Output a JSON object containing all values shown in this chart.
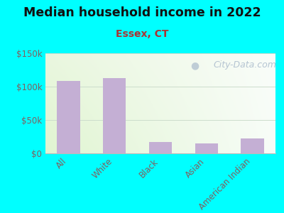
{
  "title": "Median household income in 2022",
  "subtitle": "Essex, CT",
  "categories": [
    "All",
    "White",
    "Black",
    "Asian",
    "American Indian"
  ],
  "values": [
    108000,
    113000,
    17000,
    15000,
    22000
  ],
  "bar_color": "#c4afd4",
  "background_outer": "#00ffff",
  "background_inner_left": "#d8edcc",
  "background_inner_right": "#f0f8f0",
  "background_inner_top": "#f0f8f0",
  "background_inner_bottom": "#e8f4dc",
  "title_fontsize": 12.5,
  "title_fontweight": "bold",
  "subtitle_fontsize": 10,
  "subtitle_color": "#aa3333",
  "title_color": "#111111",
  "tick_label_color": "#806060",
  "ylim": [
    0,
    150000
  ],
  "yticks": [
    0,
    50000,
    100000,
    150000
  ],
  "ytick_labels": [
    "$0",
    "$50k",
    "$100k",
    "$150k"
  ],
  "watermark": "City-Data.com",
  "watermark_color": "#aabbcc",
  "watermark_fontsize": 9,
  "grid_color": "#ccddcc",
  "bottom_spine_color": "#bbbbbb"
}
